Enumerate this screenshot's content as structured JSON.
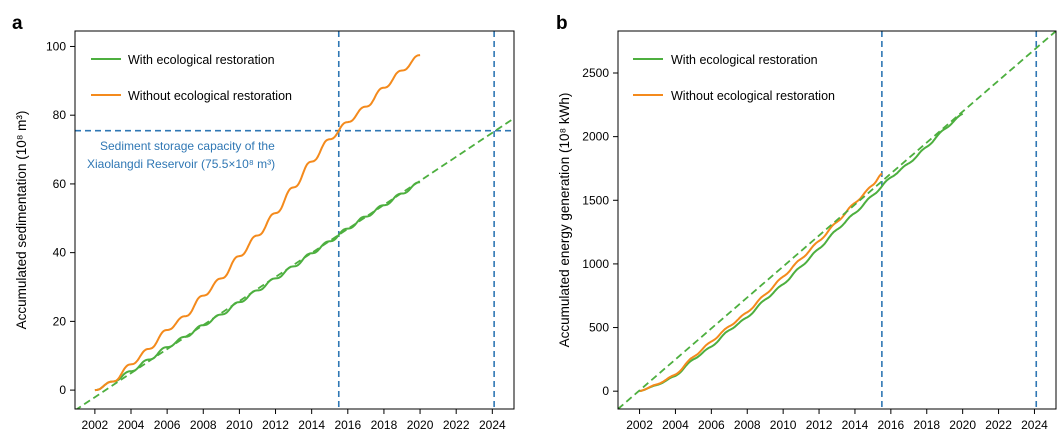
{
  "chart_data": [
    {
      "panel_label": "a",
      "type": "line",
      "ylabel": "Accumulated sedimentation (10⁸ m³)",
      "xlim": [
        2000.9,
        2025.2
      ],
      "ylim": [
        -5.5,
        104.5
      ],
      "xticks": [
        2002,
        2004,
        2006,
        2008,
        2010,
        2012,
        2014,
        2016,
        2018,
        2020,
        2022,
        2024
      ],
      "yticks": [
        0,
        20,
        40,
        60,
        80,
        100
      ],
      "legend_position": "top-left",
      "series": [
        {
          "name": "With ecological restoration",
          "color": "#4daf3f",
          "x": [
            2002.0,
            2003.0,
            2004.0,
            2005.0,
            2006.0,
            2007.0,
            2008.0,
            2009.0,
            2010.0,
            2011.0,
            2012.0,
            2013.0,
            2014.0,
            2015.0,
            2016.0,
            2017.0,
            2018.0,
            2019.0,
            2020.0
          ],
          "y": [
            0.0,
            2.5,
            5.5,
            8.9,
            12.5,
            15.5,
            18.9,
            22.0,
            25.6,
            29.0,
            32.5,
            36.0,
            39.8,
            43.3,
            47.0,
            50.5,
            53.8,
            57.2,
            60.5
          ]
        },
        {
          "name": "Without ecological restoration",
          "color": "#f48a1c",
          "x": [
            2002.0,
            2003.0,
            2004.0,
            2005.0,
            2006.0,
            2007.0,
            2008.0,
            2009.0,
            2010.0,
            2011.0,
            2012.0,
            2013.0,
            2014.0,
            2015.0,
            2016.0,
            2017.0,
            2018.0,
            2019.0,
            2020.0
          ],
          "y": [
            0.0,
            2.5,
            7.5,
            12.0,
            17.5,
            21.5,
            27.5,
            32.5,
            39.0,
            45.0,
            51.5,
            59.0,
            66.5,
            73.0,
            78.0,
            82.5,
            88.0,
            93.0,
            97.5
          ]
        },
        {
          "name": "",
          "style": "dashed",
          "color": "#4daf3f",
          "x": [
            2000.9,
            2025.2
          ],
          "y": [
            -5.9,
            79.1
          ]
        }
      ],
      "reference_lines": [
        {
          "orientation": "horizontal",
          "value": 75.5,
          "color": "#2f77b4"
        },
        {
          "orientation": "vertical",
          "value": 2015.5,
          "color": "#2f77b4"
        },
        {
          "orientation": "vertical",
          "value": 2024.1,
          "color": "#2f77b4"
        }
      ],
      "annotation": {
        "line1": "Sediment storage capacity of the",
        "line2": "Xiaolangdi Reservoir (75.5×10⁸ m³)",
        "x": 2002.0,
        "y": 71.0,
        "color": "#2f77b4"
      }
    },
    {
      "panel_label": "b",
      "type": "line",
      "ylabel": "Accumulated energy generation (10⁸ kWh)",
      "xlim": [
        2000.8,
        2025.2
      ],
      "ylim": [
        -140,
        2830
      ],
      "xticks": [
        2002,
        2004,
        2006,
        2008,
        2010,
        2012,
        2014,
        2016,
        2018,
        2020,
        2022,
        2024
      ],
      "yticks": [
        0,
        500,
        1000,
        1500,
        2000,
        2500
      ],
      "legend_position": "top-left",
      "series": [
        {
          "name": "With ecological restoration",
          "color": "#4daf3f",
          "x": [
            2002.0,
            2003.0,
            2004.0,
            2005.0,
            2006.0,
            2007.0,
            2008.0,
            2009.0,
            2010.0,
            2011.0,
            2012.0,
            2013.0,
            2014.0,
            2015.0,
            2016.0,
            2017.0,
            2018.0,
            2019.0,
            2020.0
          ],
          "y": [
            0,
            50,
            120,
            250,
            350,
            480,
            580,
            720,
            840,
            980,
            1120,
            1270,
            1400,
            1540,
            1680,
            1790,
            1920,
            2060,
            2180
          ]
        },
        {
          "name": "Without ecological restoration",
          "color": "#f48a1c",
          "x": [
            2002.0,
            2003.0,
            2004.0,
            2005.0,
            2006.0,
            2007.0,
            2008.0,
            2009.0,
            2010.0,
            2011.0,
            2012.0,
            2013.0,
            2014.0,
            2015.0,
            2015.5
          ],
          "y": [
            0,
            55,
            130,
            270,
            390,
            510,
            620,
            760,
            900,
            1040,
            1180,
            1330,
            1480,
            1620,
            1710
          ]
        },
        {
          "name": "",
          "style": "dashed",
          "color": "#4daf3f",
          "x": [
            2000.8,
            2025.2
          ],
          "y": [
            -140,
            2830
          ]
        }
      ],
      "reference_lines": [
        {
          "orientation": "vertical",
          "value": 2015.5,
          "color": "#2f77b4"
        },
        {
          "orientation": "vertical",
          "value": 2024.1,
          "color": "#2f77b4"
        }
      ]
    }
  ]
}
